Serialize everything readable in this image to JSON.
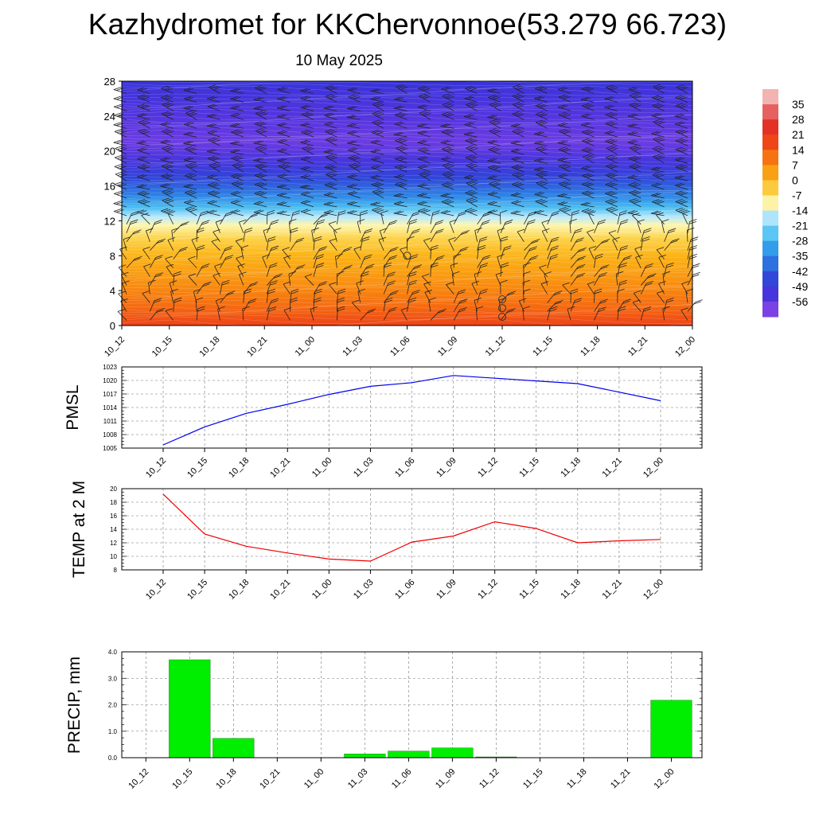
{
  "title": "Kazhydromet for KKChervonnoe(53.279 66.723)",
  "subtitle": "10 May 2025",
  "time_labels": [
    "10_12",
    "10_15",
    "10_18",
    "10_21",
    "11_00",
    "11_03",
    "11_06",
    "11_09",
    "11_12",
    "11_15",
    "11_18",
    "11_21",
    "12_00"
  ],
  "chart_data": [
    {
      "type": "heatmap",
      "quantity": "temperature with height and wind barbs",
      "x": [
        "10_12",
        "10_15",
        "10_18",
        "10_21",
        "11_00",
        "11_03",
        "11_06",
        "11_09",
        "11_12",
        "11_15",
        "11_18",
        "11_21",
        "12_00"
      ],
      "y_ticks": [
        0,
        4,
        8,
        12,
        16,
        20,
        24,
        28
      ],
      "ylim": [
        0,
        28
      ],
      "temperature_profile": [
        {
          "height": 0,
          "temp": 18
        },
        {
          "height": 2,
          "temp": 12
        },
        {
          "height": 4,
          "temp": 8
        },
        {
          "height": 6,
          "temp": 4
        },
        {
          "height": 8,
          "temp": 0
        },
        {
          "height": 10,
          "temp": -5
        },
        {
          "height": 11.5,
          "temp": -11
        },
        {
          "height": 12.5,
          "temp": -17
        },
        {
          "height": 13.5,
          "temp": -26
        },
        {
          "height": 15,
          "temp": -36
        },
        {
          "height": 17,
          "temp": -46
        },
        {
          "height": 19,
          "temp": -53
        },
        {
          "height": 21,
          "temp": -58
        },
        {
          "height": 24,
          "temp": -55
        },
        {
          "height": 28,
          "temp": -50
        }
      ],
      "colorbar": {
        "labels": [
          35,
          28,
          21,
          14,
          7,
          0,
          -7,
          -14,
          -21,
          -28,
          -35,
          -42,
          -49,
          -56
        ],
        "range": [
          -63,
          42
        ],
        "stops": [
          {
            "value": 42,
            "color": "#f6d6d6"
          },
          {
            "value": 35,
            "color": "#ee9090"
          },
          {
            "value": 28,
            "color": "#e03030"
          },
          {
            "value": 21,
            "color": "#e8321c"
          },
          {
            "value": 14,
            "color": "#f35a12"
          },
          {
            "value": 7,
            "color": "#f98c10"
          },
          {
            "value": 0,
            "color": "#fbb418"
          },
          {
            "value": -7,
            "color": "#fde060"
          },
          {
            "value": -11,
            "color": "#fdf6b0"
          },
          {
            "value": -15,
            "color": "#d0f0ff"
          },
          {
            "value": -21,
            "color": "#7fd6fa"
          },
          {
            "value": -28,
            "color": "#36b4ee"
          },
          {
            "value": -35,
            "color": "#2d86e6"
          },
          {
            "value": -42,
            "color": "#2f5ad8"
          },
          {
            "value": -49,
            "color": "#3234d8"
          },
          {
            "value": -56,
            "color": "#5a35e0"
          },
          {
            "value": -63,
            "color": "#9a4ee8"
          }
        ]
      },
      "cloud_markers": [
        {
          "time": "11_06",
          "height": 8
        },
        {
          "time": "11_12",
          "height": 3
        },
        {
          "time": "11_12",
          "height": 2
        },
        {
          "time": "11_12",
          "height": 1
        }
      ]
    },
    {
      "type": "line",
      "ylabel": "PMSL",
      "x": [
        "10_12",
        "10_15",
        "10_18",
        "10_21",
        "11_00",
        "11_03",
        "11_06",
        "11_09",
        "11_12",
        "11_15",
        "11_18",
        "11_21",
        "12_00"
      ],
      "y_ticks": [
        1005,
        1008,
        1011,
        1014,
        1017,
        1020,
        1023
      ],
      "ylim": [
        1005,
        1023
      ],
      "series": [
        {
          "values": [
            1005.7,
            1009.7,
            1012.7,
            1014.7,
            1016.9,
            1018.7,
            1019.5,
            1021.1,
            1020.5,
            1019.9,
            1019.3,
            1017.4,
            1015.5
          ],
          "color": "#0000ee"
        }
      ],
      "grid": true
    },
    {
      "type": "line",
      "ylabel": "TEMP at 2 M",
      "x": [
        "10_12",
        "10_15",
        "10_18",
        "10_21",
        "11_00",
        "11_03",
        "11_06",
        "11_09",
        "11_12",
        "11_15",
        "11_18",
        "11_21",
        "12_00"
      ],
      "y_ticks": [
        8,
        10,
        12,
        14,
        16,
        18,
        20
      ],
      "ylim": [
        8,
        20
      ],
      "series": [
        {
          "values": [
            19.2,
            13.3,
            11.5,
            10.5,
            9.6,
            9.3,
            12.1,
            13.0,
            15.1,
            14.1,
            12.0,
            12.3,
            12.5
          ],
          "color": "#ee0000"
        }
      ],
      "grid": true
    },
    {
      "type": "bar",
      "ylabel": "PRECIP, mm",
      "categories": [
        "10_12",
        "10_15",
        "10_18",
        "10_21",
        "11_00",
        "11_03",
        "11_06",
        "11_09",
        "11_12",
        "11_15",
        "11_18",
        "11_21",
        "12_00"
      ],
      "y_ticks": [
        "0.0",
        "1.0",
        "2.0",
        "3.0",
        "4.0"
      ],
      "ylim": [
        0,
        4
      ],
      "values": [
        0,
        3.7,
        0.73,
        0,
        0,
        0.14,
        0.25,
        0.37,
        0.03,
        0,
        0,
        0,
        2.17
      ],
      "bar_color": "#00ee00",
      "grid": true
    }
  ]
}
